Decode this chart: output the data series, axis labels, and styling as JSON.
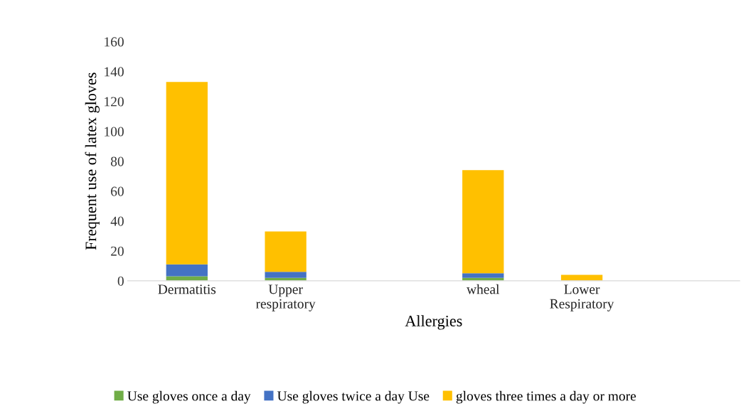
{
  "chart_data": {
    "type": "bar",
    "stacked": true,
    "xlabel": "Allergies",
    "ylabel": "Frequent use of latex gloves",
    "categories": [
      "Dermatitis",
      "Upper\nrespiratory",
      null,
      "wheal",
      "Lower\nRespiratory",
      null
    ],
    "series": [
      {
        "name": "Use gloves once a day",
        "color": "#70ad47",
        "values": [
          3,
          2,
          0,
          2,
          null,
          0
        ]
      },
      {
        "name": "Use gloves twice a day Use",
        "color": "#4472c4",
        "values": [
          8,
          4,
          0,
          3,
          0,
          0
        ]
      },
      {
        "name": "gloves three times a day or more",
        "color": "#ffc000",
        "values": [
          122,
          27,
          0,
          69,
          4,
          0
        ]
      }
    ],
    "ylim": [
      0,
      160
    ],
    "yticks": [
      0,
      20,
      40,
      60,
      80,
      100,
      120,
      140,
      160
    ],
    "grid": false,
    "legend": "bottom"
  }
}
